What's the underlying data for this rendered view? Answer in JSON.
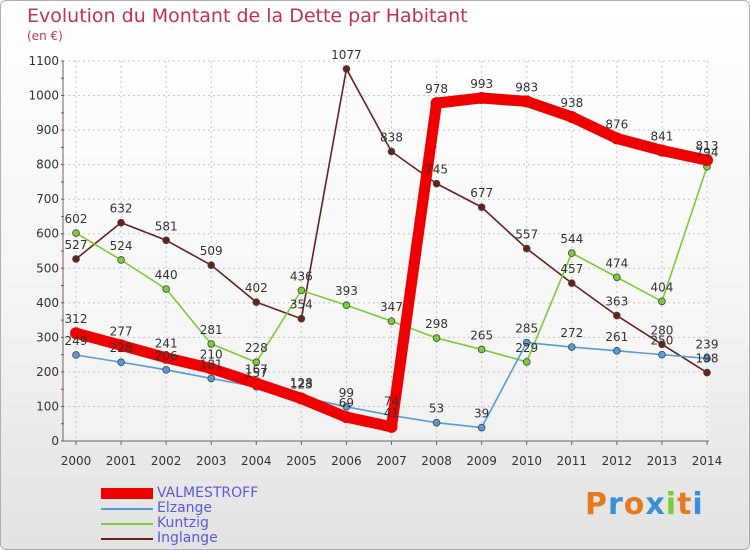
{
  "chart_data": {
    "type": "line",
    "title": "Evolution du Montant de la Dette par Habitant",
    "subtitle": "(en €)",
    "xlabel": "",
    "ylabel": "",
    "x": [
      2000,
      2001,
      2002,
      2003,
      2004,
      2005,
      2006,
      2007,
      2008,
      2009,
      2010,
      2011,
      2012,
      2013,
      2014
    ],
    "ylim": [
      0,
      1100
    ],
    "yticks": [
      0,
      100,
      200,
      300,
      400,
      500,
      600,
      700,
      800,
      900,
      1000,
      1100
    ],
    "grid": true,
    "legend_position": "bottom-left",
    "series": [
      {
        "name": "VALMESTROFF",
        "color": "#ee0000",
        "values": [
          312,
          277,
          241,
          210,
          167,
          123,
          69,
          41,
          978,
          993,
          983,
          938,
          876,
          841,
          813
        ],
        "labels": [
          "312",
          "277",
          "241",
          "210",
          "167",
          "123",
          "69",
          "41",
          "978",
          "993",
          "983",
          "938",
          "876",
          "841",
          "813"
        ]
      },
      {
        "name": "Elzange",
        "color": "#5a9bd5",
        "values": [
          249,
          228,
          206,
          181,
          157,
          128,
          99,
          74,
          53,
          39,
          285,
          272,
          261,
          250,
          239
        ],
        "labels": [
          "249",
          "228",
          "206",
          "181",
          "157",
          "128",
          "99",
          "74",
          "53",
          "39",
          "285",
          "272",
          "261",
          "250",
          "239"
        ]
      },
      {
        "name": "Kuntzig",
        "color": "#7acc3a",
        "values": [
          602,
          524,
          440,
          281,
          228,
          436,
          393,
          347,
          298,
          265,
          229,
          544,
          474,
          404,
          794
        ],
        "labels": [
          "602",
          "524",
          "440",
          "281",
          "228",
          "436",
          "393",
          "347",
          "298",
          "265",
          "229",
          "544",
          "474",
          "404",
          "794"
        ]
      },
      {
        "name": "Inglange",
        "color": "#6b2020",
        "values": [
          527,
          632,
          581,
          509,
          402,
          354,
          1077,
          838,
          745,
          677,
          557,
          457,
          363,
          280,
          198
        ],
        "labels": [
          "527",
          "632",
          "581",
          "509",
          "402",
          "354",
          "1077",
          "838",
          "745",
          "677",
          "557",
          "457",
          "363",
          "280",
          "198"
        ]
      }
    ]
  },
  "legend": {
    "items": [
      "VALMESTROFF",
      "Elzange",
      "Kuntzig",
      "Inglange"
    ]
  },
  "logo": {
    "letters": [
      "P",
      "r",
      "o",
      "x",
      "i",
      "t",
      "i"
    ],
    "colors": [
      "#e87a1e",
      "#3a8fd8",
      "#e87a1e",
      "#3a8fd8",
      "#7acc3a",
      "#e87a1e",
      "#3a8fd8"
    ]
  }
}
